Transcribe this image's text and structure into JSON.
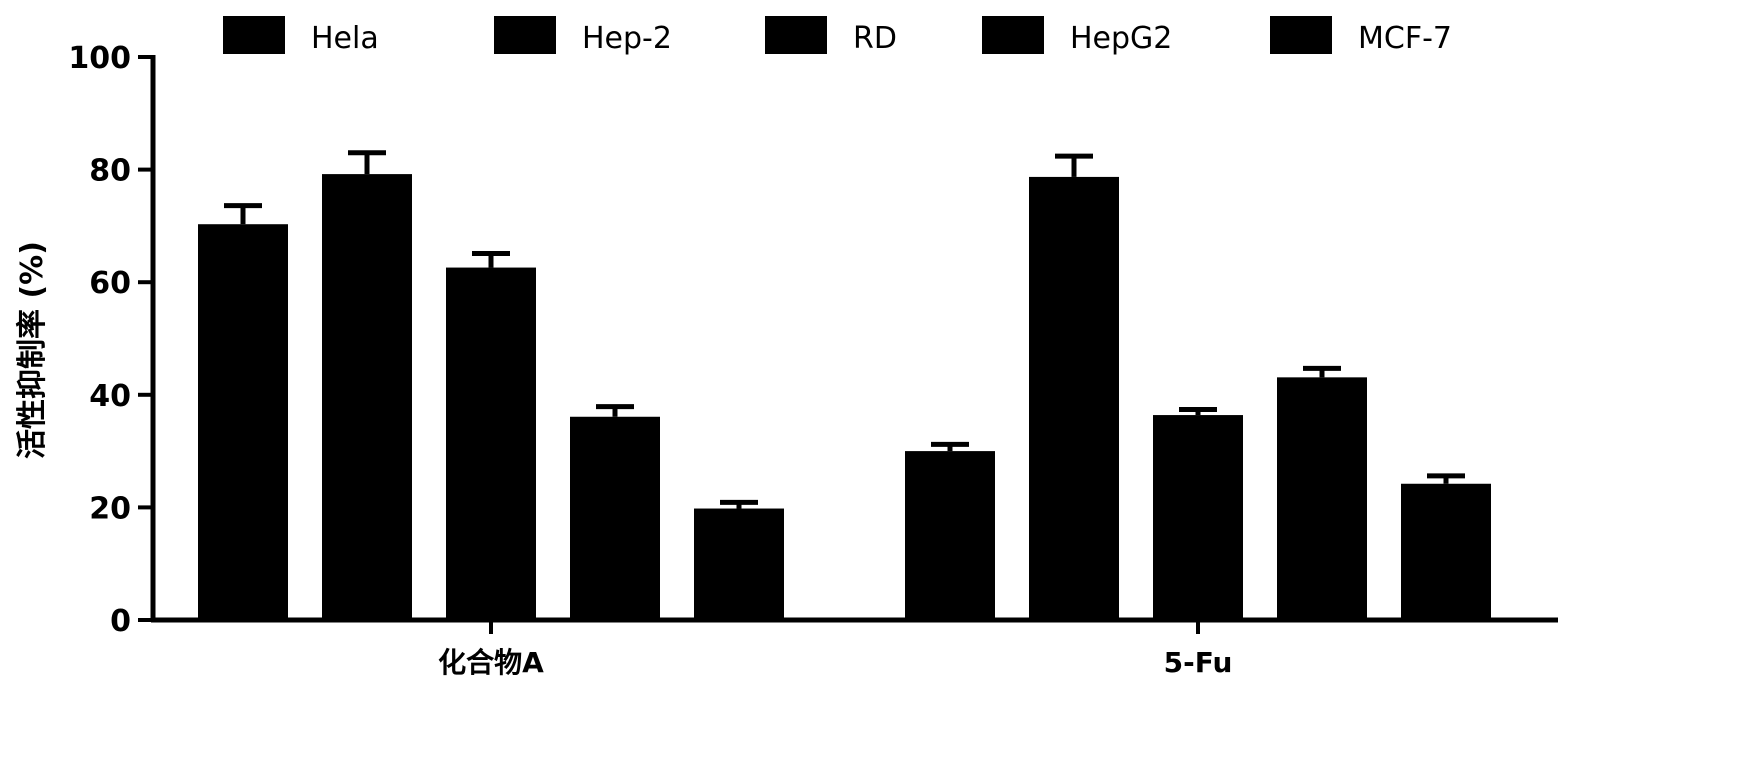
{
  "chart_data": {
    "type": "bar",
    "ylabel": "活性抑制率 (%)",
    "ylim": [
      0,
      100
    ],
    "yticks": [
      0,
      20,
      40,
      60,
      80,
      100
    ],
    "categories": [
      "化合物A",
      "5-Fu"
    ],
    "series": [
      {
        "name": "Hela",
        "values": [
          70.3,
          30.0
        ],
        "errors": [
          3.3,
          1.2
        ]
      },
      {
        "name": "Hep-2",
        "values": [
          79.2,
          78.7
        ],
        "errors": [
          3.8,
          3.7
        ]
      },
      {
        "name": "RD",
        "values": [
          62.6,
          36.4
        ],
        "errors": [
          2.5,
          1.0
        ]
      },
      {
        "name": "HepG2",
        "values": [
          36.1,
          43.1
        ],
        "errors": [
          1.8,
          1.6
        ]
      },
      {
        "name": "MCF-7",
        "values": [
          19.8,
          24.2
        ],
        "errors": [
          1.1,
          1.4
        ]
      }
    ],
    "legend_position": "top",
    "grid": false,
    "colors": {
      "bar": "#000000",
      "axis": "#000000"
    }
  }
}
